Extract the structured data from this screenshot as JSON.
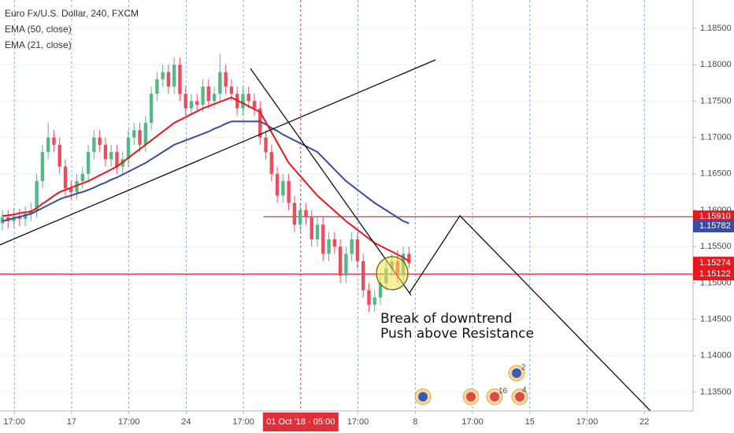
{
  "chart_data": {
    "type": "candlestick",
    "title": "Euro Fx/U.S. Dollar, 240, FXCM",
    "up_color": "#53b987",
    "down_color": "#eb4d5c",
    "x": [
      0,
      1,
      2,
      3,
      4,
      5,
      6,
      7,
      8,
      9,
      10,
      11,
      12,
      13,
      14,
      15,
      16,
      17,
      18,
      19,
      20,
      21,
      22,
      23,
      24,
      25,
      26,
      27,
      28,
      29,
      30,
      31,
      32,
      33,
      34,
      35,
      36,
      37,
      38,
      39,
      40,
      41,
      42,
      43,
      44,
      45,
      46,
      47,
      48,
      49,
      50,
      51,
      52,
      53,
      54,
      55,
      56,
      57,
      58,
      59,
      60,
      61,
      62,
      63,
      64,
      65,
      66,
      67,
      68,
      69,
      70,
      71
    ],
    "open": [
      1.1582,
      1.159,
      1.1585,
      1.1592,
      1.1588,
      1.1595,
      1.16,
      1.164,
      1.168,
      1.17,
      1.169,
      1.166,
      1.163,
      1.1625,
      1.164,
      1.165,
      1.168,
      1.17,
      1.169,
      1.167,
      1.168,
      1.166,
      1.167,
      1.17,
      1.171,
      1.169,
      1.172,
      1.176,
      1.178,
      1.179,
      1.177,
      1.18,
      1.176,
      1.174,
      1.175,
      1.1745,
      1.177,
      1.175,
      1.176,
      1.179,
      1.177,
      1.176,
      1.174,
      1.176,
      1.175,
      1.174,
      1.17,
      1.168,
      1.165,
      1.162,
      1.164,
      1.161,
      1.158,
      1.16,
      1.159,
      1.156,
      1.158,
      1.154,
      1.156,
      1.155,
      1.151,
      1.154,
      1.156,
      1.153,
      1.149,
      1.147,
      1.148,
      1.15,
      1.152,
      1.153,
      1.151,
      1.154
    ],
    "high": [
      1.16,
      1.16,
      1.1602,
      1.1602,
      1.1605,
      1.161,
      1.165,
      1.169,
      1.172,
      1.171,
      1.17,
      1.167,
      1.164,
      1.165,
      1.166,
      1.169,
      1.171,
      1.171,
      1.17,
      1.169,
      1.169,
      1.168,
      1.171,
      1.172,
      1.172,
      1.173,
      1.177,
      1.179,
      1.18,
      1.18,
      1.181,
      1.181,
      1.177,
      1.176,
      1.176,
      1.178,
      1.178,
      1.177,
      1.1815,
      1.18,
      1.178,
      1.177,
      1.177,
      1.177,
      1.176,
      1.175,
      1.171,
      1.169,
      1.166,
      1.165,
      1.165,
      1.162,
      1.161,
      1.161,
      1.16,
      1.159,
      1.159,
      1.157,
      1.157,
      1.156,
      1.155,
      1.157,
      1.157,
      1.154,
      1.15,
      1.149,
      1.151,
      1.153,
      1.154,
      1.1545,
      1.155,
      1.155
    ],
    "low": [
      1.1572,
      1.1575,
      1.1575,
      1.1578,
      1.1578,
      1.1585,
      1.159,
      1.163,
      1.167,
      1.168,
      1.165,
      1.162,
      1.1615,
      1.1615,
      1.163,
      1.164,
      1.167,
      1.168,
      1.166,
      1.166,
      1.165,
      1.165,
      1.166,
      1.169,
      1.168,
      1.168,
      1.171,
      1.175,
      1.177,
      1.176,
      1.176,
      1.175,
      1.173,
      1.173,
      1.1735,
      1.1735,
      1.174,
      1.174,
      1.175,
      1.176,
      1.175,
      1.173,
      1.173,
      1.174,
      1.173,
      1.169,
      1.167,
      1.164,
      1.161,
      1.161,
      1.16,
      1.157,
      1.157,
      1.158,
      1.155,
      1.155,
      1.153,
      1.153,
      1.154,
      1.15,
      1.15,
      1.153,
      1.152,
      1.148,
      1.146,
      1.146,
      1.147,
      1.149,
      1.151,
      1.15,
      1.15,
      1.152
    ],
    "close": [
      1.159,
      1.1585,
      1.1592,
      1.1588,
      1.1595,
      1.16,
      1.164,
      1.168,
      1.17,
      1.169,
      1.166,
      1.163,
      1.1625,
      1.164,
      1.165,
      1.168,
      1.17,
      1.169,
      1.167,
      1.168,
      1.166,
      1.167,
      1.17,
      1.171,
      1.169,
      1.172,
      1.176,
      1.178,
      1.179,
      1.177,
      1.18,
      1.176,
      1.174,
      1.175,
      1.1745,
      1.177,
      1.175,
      1.176,
      1.179,
      1.177,
      1.176,
      1.174,
      1.176,
      1.175,
      1.174,
      1.17,
      1.168,
      1.165,
      1.162,
      1.164,
      1.161,
      1.158,
      1.16,
      1.159,
      1.156,
      1.158,
      1.154,
      1.156,
      1.155,
      1.151,
      1.154,
      1.156,
      1.153,
      1.149,
      1.147,
      1.148,
      1.15,
      1.152,
      1.153,
      1.151,
      1.154,
      1.1527
    ],
    "series": [
      {
        "name": "EMA (50, close)",
        "color": "#3b4ba0",
        "values": [
          1.1585,
          1.1587,
          1.1589,
          1.1591,
          1.1593,
          1.1595,
          1.1599,
          1.1603,
          1.1607,
          1.1611,
          1.1615,
          1.1618,
          1.162,
          1.1623,
          1.1625,
          1.1628,
          1.1631,
          1.1635,
          1.1638,
          1.1642,
          1.1645,
          1.1649,
          1.1653,
          1.1657,
          1.1661,
          1.1665,
          1.167,
          1.1675,
          1.168,
          1.1685,
          1.169,
          1.1693,
          1.1696,
          1.1699,
          1.1702,
          1.1705,
          1.1708,
          1.1712,
          1.1715,
          1.1719,
          1.1722,
          1.1722,
          1.1722,
          1.1722,
          1.1722,
          1.1722,
          1.1718,
          1.1713,
          1.1709,
          1.1704,
          1.17,
          1.1696,
          1.1692,
          1.1688,
          1.1684,
          1.168,
          1.1672,
          1.1664,
          1.1656,
          1.1648,
          1.164,
          1.1634,
          1.1628,
          1.1622,
          1.1616,
          1.161,
          1.1605,
          1.16,
          1.1595,
          1.159,
          1.1585,
          1.1582
        ]
      },
      {
        "name": "EMA (21, close)",
        "color": "#e8161e",
        "values": [
          1.1592,
          1.1593,
          1.1594,
          1.1596,
          1.1597,
          1.1598,
          1.1603,
          1.1609,
          1.1614,
          1.162,
          1.1625,
          1.1628,
          1.1631,
          1.1634,
          1.1637,
          1.164,
          1.1644,
          1.1648,
          1.1652,
          1.1656,
          1.166,
          1.1666,
          1.1672,
          1.1678,
          1.1684,
          1.169,
          1.1696,
          1.1702,
          1.1708,
          1.1714,
          1.172,
          1.1724,
          1.1728,
          1.1732,
          1.1736,
          1.174,
          1.1743,
          1.1746,
          1.1749,
          1.1752,
          1.1755,
          1.1751,
          1.1747,
          1.1743,
          1.1739,
          1.1735,
          1.1721,
          1.1707,
          1.1693,
          1.1679,
          1.1665,
          1.1656,
          1.1647,
          1.1638,
          1.1629,
          1.162,
          1.1613,
          1.1606,
          1.1599,
          1.1592,
          1.1585,
          1.1579,
          1.1573,
          1.1567,
          1.1561,
          1.1555,
          1.1551,
          1.1547,
          1.1543,
          1.1539,
          1.1535,
          1.153
        ]
      }
    ],
    "xlim": [
      0,
      121
    ],
    "xticks": [
      {
        "value": 2.5,
        "label": "17:00"
      },
      {
        "value": 12.5,
        "label": "17"
      },
      {
        "value": 22.5,
        "label": "17:00"
      },
      {
        "value": 32.5,
        "label": "24"
      },
      {
        "value": 42.5,
        "label": "17:00"
      },
      {
        "value": 62.5,
        "label": "17:00"
      },
      {
        "value": 72.5,
        "label": "8"
      },
      {
        "value": 82.5,
        "label": "17:00"
      },
      {
        "value": 92.5,
        "label": "15"
      },
      {
        "value": 102.5,
        "label": "17:00"
      },
      {
        "value": 112.5,
        "label": "22"
      }
    ],
    "crosshair": {
      "value": 52.5,
      "label": "01 Oct '18 · 05:00",
      "color": "#e0303a"
    },
    "ylim": [
      1.1324,
      1.1889
    ],
    "yticks": [
      {
        "value": 1.135,
        "label": "1.13500"
      },
      {
        "value": 1.14,
        "label": "1.14000"
      },
      {
        "value": 1.145,
        "label": "1.14500"
      },
      {
        "value": 1.15,
        "label": "1.15000"
      },
      {
        "value": 1.155,
        "label": "1.15500"
      },
      {
        "value": 1.16,
        "label": "1.16000"
      },
      {
        "value": 1.165,
        "label": "1.16500"
      },
      {
        "value": 1.17,
        "label": "1.17000"
      },
      {
        "value": 1.175,
        "label": "1.17500"
      },
      {
        "value": 1.18,
        "label": "1.18000"
      },
      {
        "value": 1.185,
        "label": "1.18500"
      }
    ],
    "grid": true,
    "price_labels": [
      {
        "value": 1.1591,
        "label": "1.15910",
        "color": "#e8161e",
        "line": true
      },
      {
        "value": 1.15782,
        "label": "1.15782",
        "color": "#3b4ba0",
        "line": false
      },
      {
        "value": 1.15274,
        "label": "1.15274",
        "color": "#e8161e",
        "line": false
      },
      {
        "value": 1.15122,
        "label": "1.15122",
        "color": "#e8161e",
        "line": true
      }
    ],
    "annotations": [
      "Break of downtrend",
      "Push above Resistance"
    ],
    "event_badges": [
      "16",
      "2",
      "4"
    ]
  }
}
